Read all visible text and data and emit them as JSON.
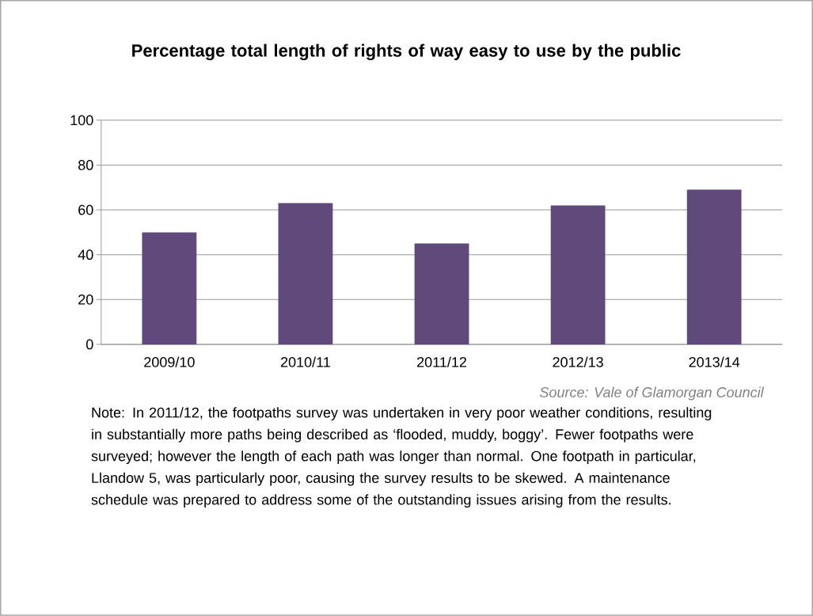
{
  "chart_data": {
    "type": "bar",
    "title": "Percentage total length of rights of way easy to use by the public",
    "categories": [
      "2009/10",
      "2010/11",
      "2011/12",
      "2012/13",
      "2013/14"
    ],
    "values": [
      50,
      63,
      45,
      62,
      69
    ],
    "color": "#604a7b",
    "ylim": [
      0,
      100
    ],
    "yticks": [
      0,
      20,
      40,
      60,
      80,
      100
    ],
    "grid": "y",
    "annotations": [
      "Source: Vale of Glamorgan Council",
      "Note: In 2011/12, the footpaths survey was undertaken in very poor weather conditions, resulting in substantially more paths being described as ‘flooded, muddy, boggy’. Fewer footpaths were surveyed; however the length of each path was longer than normal. One footpath in particular, Llandow 5, was particularly poor, causing the survey results to be skewed. A maintenance schedule was prepared to address some of the outstanding issues arising from the results."
    ]
  }
}
